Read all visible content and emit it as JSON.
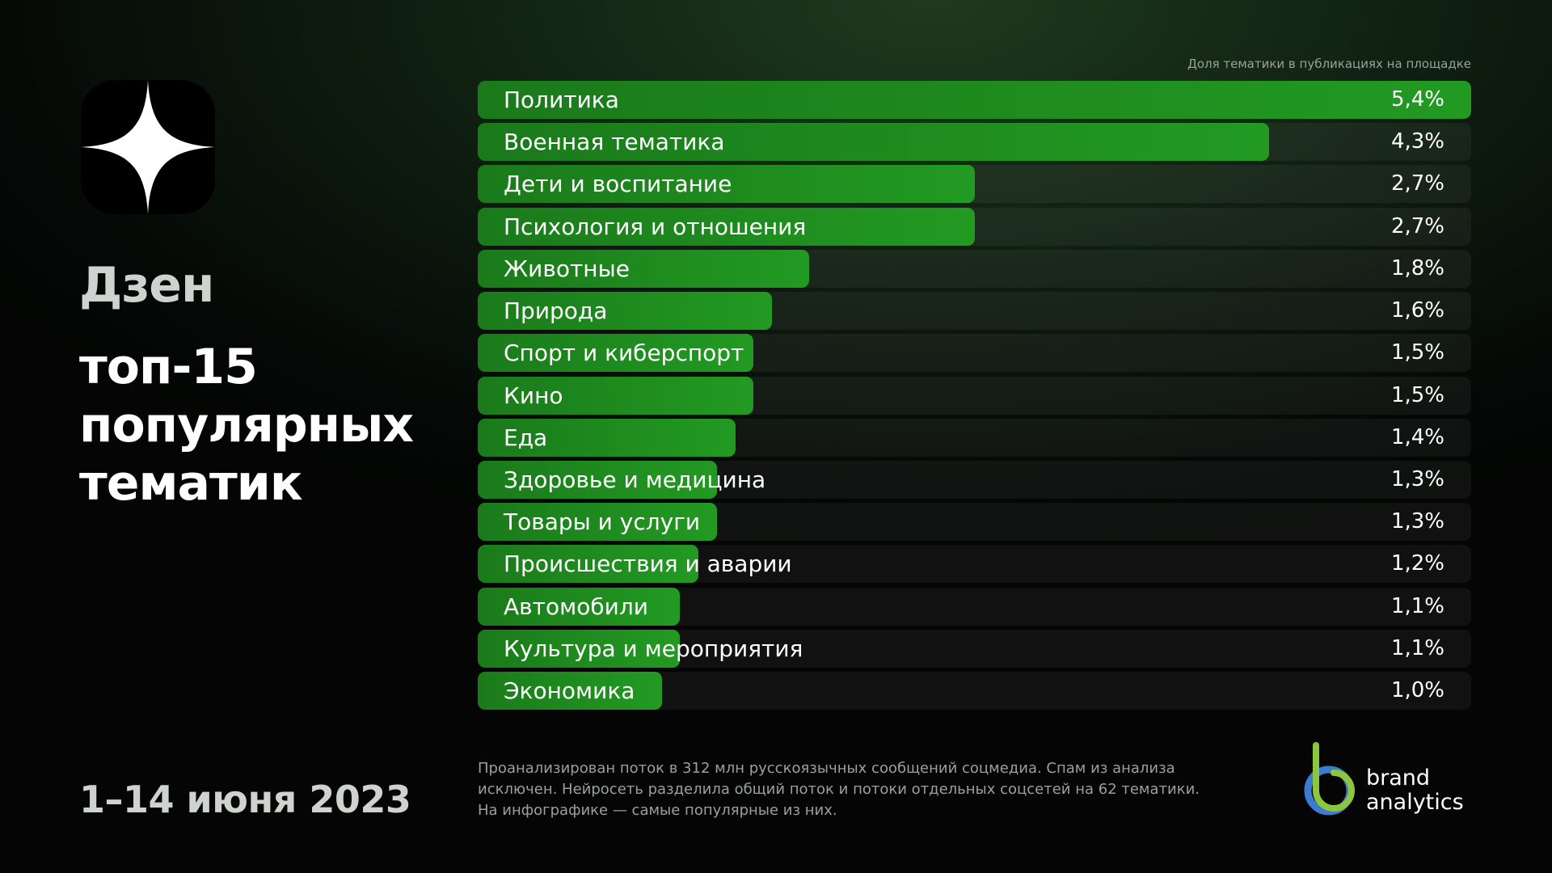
{
  "header": {
    "platform": "Дзен",
    "headline_lines": [
      "топ-15",
      "популярных",
      "тематик"
    ],
    "date_range": "1–14 июня 2023"
  },
  "chart_data": {
    "type": "bar",
    "orientation": "horizontal",
    "ylabel": "Доля тематики в публикациях на площадке",
    "categories": [
      "Политика",
      "Военная тематика",
      "Дети и воспитание",
      "Психология и отношения",
      "Животные",
      "Природа",
      "Спорт и киберспорт",
      "Кино",
      "Еда",
      "Здоровье и медицина",
      "Товары и услуги",
      "Происшествия и аварии",
      "Автомобили",
      "Культура и мероприятия",
      "Экономика"
    ],
    "values": [
      5.4,
      4.3,
      2.7,
      2.7,
      1.8,
      1.6,
      1.5,
      1.5,
      1.4,
      1.3,
      1.3,
      1.2,
      1.1,
      1.1,
      1.0
    ],
    "value_labels": [
      "5,4%",
      "4,3%",
      "2,7%",
      "2,7%",
      "1,8%",
      "1,6%",
      "1,5%",
      "1,5%",
      "1,4%",
      "1,3%",
      "1,3%",
      "1,2%",
      "1,1%",
      "1,1%",
      "1,0%"
    ],
    "xlim": [
      0,
      5.4
    ],
    "bar_color": "#229a22",
    "track_color": "#1c1f1c",
    "grid": false,
    "legend": "none"
  },
  "footnote": "Проанализирован поток в 312 млн русскоязычных сообщений соцмедиа. Спам из анализа исключен. Нейросеть разделила общий поток и потоки отдельных соцсетей на 62 тематики. На инфографике — самые популярные из них.",
  "brand": {
    "line1": "brand",
    "line2": "analytics"
  },
  "icons": {
    "platform_logo": "dzen-star-icon",
    "brand_logo": "brand-analytics-logo"
  }
}
